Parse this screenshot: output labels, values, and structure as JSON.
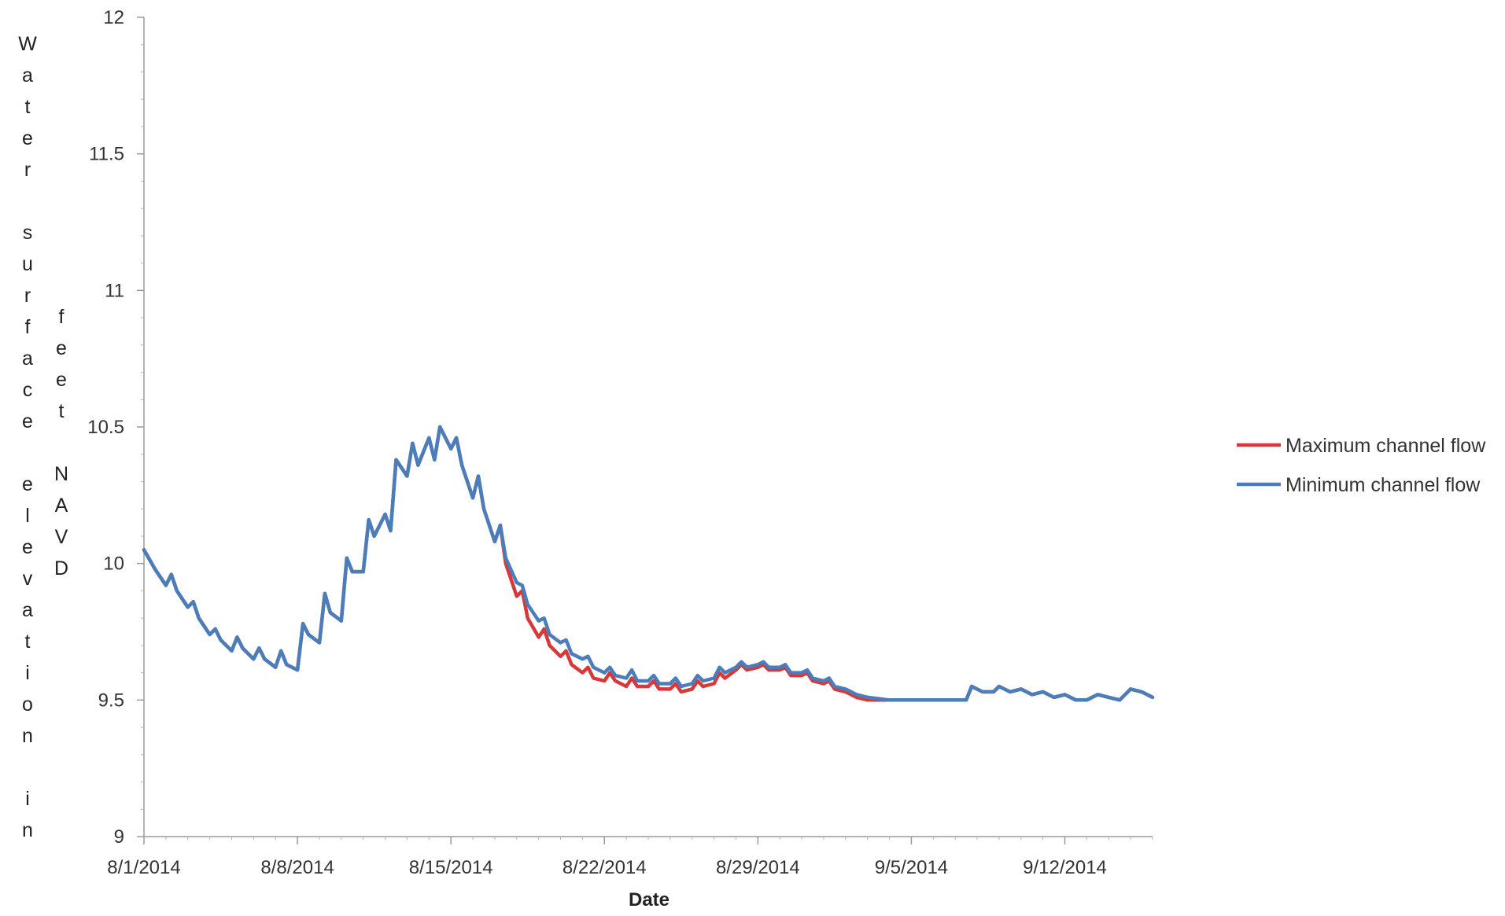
{
  "chart_data": {
    "type": "line",
    "title": "",
    "xlabel": "Date",
    "ylabel": "Water surface elevation in feet NAVD",
    "ylabel_columns": [
      [
        "W",
        "a",
        "t",
        "e",
        "r",
        "",
        "s",
        "u",
        "r",
        "f",
        "a",
        "c",
        "e",
        "",
        "e",
        "l",
        "e",
        "v",
        "a",
        "t",
        "i",
        "o",
        "n",
        "",
        "i",
        "n"
      ],
      [
        "f",
        "e",
        "e",
        "t",
        "",
        "N",
        "A",
        "V",
        "D"
      ]
    ],
    "x_range": [
      "2014-08-01",
      "2014-09-16"
    ],
    "ylim": [
      9,
      12
    ],
    "y_ticks": [
      9,
      9.5,
      10,
      10.5,
      11,
      11.5,
      12
    ],
    "x_ticks": [
      {
        "date": "2014-08-01",
        "label": "8/1/2014"
      },
      {
        "date": "2014-08-08",
        "label": "8/8/2014"
      },
      {
        "date": "2014-08-15",
        "label": "8/15/2014"
      },
      {
        "date": "2014-08-22",
        "label": "8/22/2014"
      },
      {
        "date": "2014-08-29",
        "label": "8/29/2014"
      },
      {
        "date": "2014-09-05",
        "label": "9/5/2014"
      },
      {
        "date": "2014-09-12",
        "label": "9/12/2014"
      }
    ],
    "grid": false,
    "legend_position": "right",
    "series": [
      {
        "name": "Maximum channel flow",
        "color": "#d9383a",
        "points": [
          [
            "2014-08-01T00:00",
            10.05
          ],
          [
            "2014-08-01T12:00",
            9.98
          ],
          [
            "2014-08-02T00:00",
            9.92
          ],
          [
            "2014-08-02T06:00",
            9.96
          ],
          [
            "2014-08-02T12:00",
            9.9
          ],
          [
            "2014-08-03T00:00",
            9.84
          ],
          [
            "2014-08-03T06:00",
            9.86
          ],
          [
            "2014-08-03T12:00",
            9.8
          ],
          [
            "2014-08-04T00:00",
            9.74
          ],
          [
            "2014-08-04T06:00",
            9.76
          ],
          [
            "2014-08-04T12:00",
            9.72
          ],
          [
            "2014-08-05T00:00",
            9.68
          ],
          [
            "2014-08-05T06:00",
            9.73
          ],
          [
            "2014-08-05T12:00",
            9.69
          ],
          [
            "2014-08-06T00:00",
            9.65
          ],
          [
            "2014-08-06T06:00",
            9.69
          ],
          [
            "2014-08-06T12:00",
            9.65
          ],
          [
            "2014-08-07T00:00",
            9.62
          ],
          [
            "2014-08-07T06:00",
            9.68
          ],
          [
            "2014-08-07T12:00",
            9.63
          ],
          [
            "2014-08-08T00:00",
            9.61
          ],
          [
            "2014-08-08T06:00",
            9.78
          ],
          [
            "2014-08-08T12:00",
            9.74
          ],
          [
            "2014-08-09T00:00",
            9.71
          ],
          [
            "2014-08-09T06:00",
            9.89
          ],
          [
            "2014-08-09T12:00",
            9.82
          ],
          [
            "2014-08-10T00:00",
            9.79
          ],
          [
            "2014-08-10T06:00",
            10.02
          ],
          [
            "2014-08-10T12:00",
            9.97
          ],
          [
            "2014-08-11T00:00",
            9.97
          ],
          [
            "2014-08-11T06:00",
            10.16
          ],
          [
            "2014-08-11T12:00",
            10.1
          ],
          [
            "2014-08-12T00:00",
            10.18
          ],
          [
            "2014-08-12T06:00",
            10.12
          ],
          [
            "2014-08-12T12:00",
            10.38
          ],
          [
            "2014-08-13T00:00",
            10.32
          ],
          [
            "2014-08-13T06:00",
            10.44
          ],
          [
            "2014-08-13T12:00",
            10.36
          ],
          [
            "2014-08-14T00:00",
            10.46
          ],
          [
            "2014-08-14T06:00",
            10.38
          ],
          [
            "2014-08-14T12:00",
            10.5
          ],
          [
            "2014-08-15T00:00",
            10.42
          ],
          [
            "2014-08-15T06:00",
            10.46
          ],
          [
            "2014-08-15T12:00",
            10.36
          ],
          [
            "2014-08-16T00:00",
            10.24
          ],
          [
            "2014-08-16T06:00",
            10.32
          ],
          [
            "2014-08-16T12:00",
            10.2
          ],
          [
            "2014-08-17T00:00",
            10.08
          ],
          [
            "2014-08-17T06:00",
            10.14
          ],
          [
            "2014-08-17T12:00",
            10.0
          ],
          [
            "2014-08-18T00:00",
            9.88
          ],
          [
            "2014-08-18T06:00",
            9.9
          ],
          [
            "2014-08-18T12:00",
            9.8
          ],
          [
            "2014-08-19T00:00",
            9.73
          ],
          [
            "2014-08-19T06:00",
            9.76
          ],
          [
            "2014-08-19T12:00",
            9.7
          ],
          [
            "2014-08-20T00:00",
            9.66
          ],
          [
            "2014-08-20T06:00",
            9.68
          ],
          [
            "2014-08-20T12:00",
            9.63
          ],
          [
            "2014-08-21T00:00",
            9.6
          ],
          [
            "2014-08-21T06:00",
            9.62
          ],
          [
            "2014-08-21T12:00",
            9.58
          ],
          [
            "2014-08-22T00:00",
            9.57
          ],
          [
            "2014-08-22T06:00",
            9.6
          ],
          [
            "2014-08-22T12:00",
            9.57
          ],
          [
            "2014-08-23T00:00",
            9.55
          ],
          [
            "2014-08-23T06:00",
            9.58
          ],
          [
            "2014-08-23T12:00",
            9.55
          ],
          [
            "2014-08-24T00:00",
            9.55
          ],
          [
            "2014-08-24T06:00",
            9.57
          ],
          [
            "2014-08-24T12:00",
            9.54
          ],
          [
            "2014-08-25T00:00",
            9.54
          ],
          [
            "2014-08-25T06:00",
            9.56
          ],
          [
            "2014-08-25T12:00",
            9.53
          ],
          [
            "2014-08-26T00:00",
            9.54
          ],
          [
            "2014-08-26T06:00",
            9.57
          ],
          [
            "2014-08-26T12:00",
            9.55
          ],
          [
            "2014-08-27T00:00",
            9.56
          ],
          [
            "2014-08-27T06:00",
            9.6
          ],
          [
            "2014-08-27T12:00",
            9.58
          ],
          [
            "2014-08-28T00:00",
            9.61
          ],
          [
            "2014-08-28T06:00",
            9.63
          ],
          [
            "2014-08-28T12:00",
            9.61
          ],
          [
            "2014-08-29T00:00",
            9.62
          ],
          [
            "2014-08-29T06:00",
            9.63
          ],
          [
            "2014-08-29T12:00",
            9.61
          ],
          [
            "2014-08-30T00:00",
            9.61
          ],
          [
            "2014-08-30T06:00",
            9.62
          ],
          [
            "2014-08-30T12:00",
            9.59
          ],
          [
            "2014-08-31T00:00",
            9.59
          ],
          [
            "2014-08-31T06:00",
            9.6
          ],
          [
            "2014-08-31T12:00",
            9.57
          ],
          [
            "2014-09-01T00:00",
            9.56
          ],
          [
            "2014-09-01T06:00",
            9.57
          ],
          [
            "2014-09-01T12:00",
            9.54
          ],
          [
            "2014-09-02T00:00",
            9.53
          ],
          [
            "2014-09-02T12:00",
            9.51
          ],
          [
            "2014-09-03T00:00",
            9.5
          ],
          [
            "2014-09-04T00:00",
            9.5
          ],
          [
            "2014-09-05T00:00",
            9.5
          ],
          [
            "2014-09-06T00:00",
            9.5
          ],
          [
            "2014-09-07T00:00",
            9.5
          ],
          [
            "2014-09-07T12:00",
            9.5
          ],
          [
            "2014-09-07T18:00",
            9.55
          ],
          [
            "2014-09-08T06:00",
            9.53
          ],
          [
            "2014-09-08T18:00",
            9.53
          ],
          [
            "2014-09-09T00:00",
            9.55
          ],
          [
            "2014-09-09T12:00",
            9.53
          ],
          [
            "2014-09-10T00:00",
            9.54
          ],
          [
            "2014-09-10T12:00",
            9.52
          ],
          [
            "2014-09-11T00:00",
            9.53
          ],
          [
            "2014-09-11T12:00",
            9.51
          ],
          [
            "2014-09-12T00:00",
            9.52
          ],
          [
            "2014-09-12T12:00",
            9.5
          ],
          [
            "2014-09-13T00:00",
            9.5
          ],
          [
            "2014-09-13T12:00",
            9.52
          ],
          [
            "2014-09-14T00:00",
            9.51
          ],
          [
            "2014-09-14T12:00",
            9.5
          ],
          [
            "2014-09-15T00:00",
            9.54
          ],
          [
            "2014-09-15T12:00",
            9.53
          ],
          [
            "2014-09-16T00:00",
            9.51
          ]
        ]
      },
      {
        "name": "Minimum channel flow",
        "color": "#4a7ebb",
        "points": [
          [
            "2014-08-01T00:00",
            10.05
          ],
          [
            "2014-08-01T12:00",
            9.98
          ],
          [
            "2014-08-02T00:00",
            9.92
          ],
          [
            "2014-08-02T06:00",
            9.96
          ],
          [
            "2014-08-02T12:00",
            9.9
          ],
          [
            "2014-08-03T00:00",
            9.84
          ],
          [
            "2014-08-03T06:00",
            9.86
          ],
          [
            "2014-08-03T12:00",
            9.8
          ],
          [
            "2014-08-04T00:00",
            9.74
          ],
          [
            "2014-08-04T06:00",
            9.76
          ],
          [
            "2014-08-04T12:00",
            9.72
          ],
          [
            "2014-08-05T00:00",
            9.68
          ],
          [
            "2014-08-05T06:00",
            9.73
          ],
          [
            "2014-08-05T12:00",
            9.69
          ],
          [
            "2014-08-06T00:00",
            9.65
          ],
          [
            "2014-08-06T06:00",
            9.69
          ],
          [
            "2014-08-06T12:00",
            9.65
          ],
          [
            "2014-08-07T00:00",
            9.62
          ],
          [
            "2014-08-07T06:00",
            9.68
          ],
          [
            "2014-08-07T12:00",
            9.63
          ],
          [
            "2014-08-08T00:00",
            9.61
          ],
          [
            "2014-08-08T06:00",
            9.78
          ],
          [
            "2014-08-08T12:00",
            9.74
          ],
          [
            "2014-08-09T00:00",
            9.71
          ],
          [
            "2014-08-09T06:00",
            9.89
          ],
          [
            "2014-08-09T12:00",
            9.82
          ],
          [
            "2014-08-10T00:00",
            9.79
          ],
          [
            "2014-08-10T06:00",
            10.02
          ],
          [
            "2014-08-10T12:00",
            9.97
          ],
          [
            "2014-08-11T00:00",
            9.97
          ],
          [
            "2014-08-11T06:00",
            10.16
          ],
          [
            "2014-08-11T12:00",
            10.1
          ],
          [
            "2014-08-12T00:00",
            10.18
          ],
          [
            "2014-08-12T06:00",
            10.12
          ],
          [
            "2014-08-12T12:00",
            10.38
          ],
          [
            "2014-08-13T00:00",
            10.32
          ],
          [
            "2014-08-13T06:00",
            10.44
          ],
          [
            "2014-08-13T12:00",
            10.36
          ],
          [
            "2014-08-14T00:00",
            10.46
          ],
          [
            "2014-08-14T06:00",
            10.38
          ],
          [
            "2014-08-14T12:00",
            10.5
          ],
          [
            "2014-08-15T00:00",
            10.42
          ],
          [
            "2014-08-15T06:00",
            10.46
          ],
          [
            "2014-08-15T12:00",
            10.36
          ],
          [
            "2014-08-16T00:00",
            10.24
          ],
          [
            "2014-08-16T06:00",
            10.32
          ],
          [
            "2014-08-16T12:00",
            10.2
          ],
          [
            "2014-08-17T00:00",
            10.08
          ],
          [
            "2014-08-17T06:00",
            10.14
          ],
          [
            "2014-08-17T12:00",
            10.02
          ],
          [
            "2014-08-18T00:00",
            9.93
          ],
          [
            "2014-08-18T06:00",
            9.92
          ],
          [
            "2014-08-18T12:00",
            9.85
          ],
          [
            "2014-08-19T00:00",
            9.79
          ],
          [
            "2014-08-19T06:00",
            9.8
          ],
          [
            "2014-08-19T12:00",
            9.74
          ],
          [
            "2014-08-20T00:00",
            9.71
          ],
          [
            "2014-08-20T06:00",
            9.72
          ],
          [
            "2014-08-20T12:00",
            9.67
          ],
          [
            "2014-08-21T00:00",
            9.65
          ],
          [
            "2014-08-21T06:00",
            9.66
          ],
          [
            "2014-08-21T12:00",
            9.62
          ],
          [
            "2014-08-22T00:00",
            9.6
          ],
          [
            "2014-08-22T06:00",
            9.62
          ],
          [
            "2014-08-22T12:00",
            9.59
          ],
          [
            "2014-08-23T00:00",
            9.58
          ],
          [
            "2014-08-23T06:00",
            9.61
          ],
          [
            "2014-08-23T12:00",
            9.57
          ],
          [
            "2014-08-24T00:00",
            9.57
          ],
          [
            "2014-08-24T06:00",
            9.59
          ],
          [
            "2014-08-24T12:00",
            9.56
          ],
          [
            "2014-08-25T00:00",
            9.56
          ],
          [
            "2014-08-25T06:00",
            9.58
          ],
          [
            "2014-08-25T12:00",
            9.55
          ],
          [
            "2014-08-26T00:00",
            9.56
          ],
          [
            "2014-08-26T06:00",
            9.59
          ],
          [
            "2014-08-26T12:00",
            9.57
          ],
          [
            "2014-08-27T00:00",
            9.58
          ],
          [
            "2014-08-27T06:00",
            9.62
          ],
          [
            "2014-08-27T12:00",
            9.6
          ],
          [
            "2014-08-28T00:00",
            9.62
          ],
          [
            "2014-08-28T06:00",
            9.64
          ],
          [
            "2014-08-28T12:00",
            9.62
          ],
          [
            "2014-08-29T00:00",
            9.63
          ],
          [
            "2014-08-29T06:00",
            9.64
          ],
          [
            "2014-08-29T12:00",
            9.62
          ],
          [
            "2014-08-30T00:00",
            9.62
          ],
          [
            "2014-08-30T06:00",
            9.63
          ],
          [
            "2014-08-30T12:00",
            9.6
          ],
          [
            "2014-08-31T00:00",
            9.6
          ],
          [
            "2014-08-31T06:00",
            9.61
          ],
          [
            "2014-08-31T12:00",
            9.58
          ],
          [
            "2014-09-01T00:00",
            9.57
          ],
          [
            "2014-09-01T06:00",
            9.58
          ],
          [
            "2014-09-01T12:00",
            9.55
          ],
          [
            "2014-09-02T00:00",
            9.54
          ],
          [
            "2014-09-02T12:00",
            9.52
          ],
          [
            "2014-09-03T00:00",
            9.51
          ],
          [
            "2014-09-04T00:00",
            9.5
          ],
          [
            "2014-09-05T00:00",
            9.5
          ],
          [
            "2014-09-06T00:00",
            9.5
          ],
          [
            "2014-09-07T00:00",
            9.5
          ],
          [
            "2014-09-07T12:00",
            9.5
          ],
          [
            "2014-09-07T18:00",
            9.55
          ],
          [
            "2014-09-08T06:00",
            9.53
          ],
          [
            "2014-09-08T18:00",
            9.53
          ],
          [
            "2014-09-09T00:00",
            9.55
          ],
          [
            "2014-09-09T12:00",
            9.53
          ],
          [
            "2014-09-10T00:00",
            9.54
          ],
          [
            "2014-09-10T12:00",
            9.52
          ],
          [
            "2014-09-11T00:00",
            9.53
          ],
          [
            "2014-09-11T12:00",
            9.51
          ],
          [
            "2014-09-12T00:00",
            9.52
          ],
          [
            "2014-09-12T12:00",
            9.5
          ],
          [
            "2014-09-13T00:00",
            9.5
          ],
          [
            "2014-09-13T12:00",
            9.52
          ],
          [
            "2014-09-14T00:00",
            9.51
          ],
          [
            "2014-09-14T12:00",
            9.5
          ],
          [
            "2014-09-15T00:00",
            9.54
          ],
          [
            "2014-09-15T12:00",
            9.53
          ],
          [
            "2014-09-16T00:00",
            9.51
          ]
        ]
      }
    ]
  }
}
